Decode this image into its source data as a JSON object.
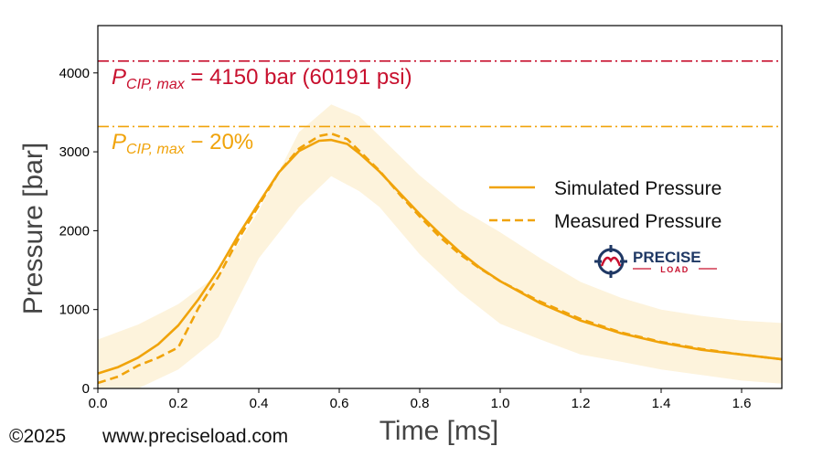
{
  "chart_data": {
    "type": "line",
    "xlabel": "Time [ms]",
    "ylabel": "Pressure [bar]",
    "xlim": [
      0.0,
      1.7
    ],
    "ylim": [
      0,
      4600
    ],
    "x_ticks": [
      "0.0",
      "0.2",
      "0.4",
      "0.6",
      "0.8",
      "1.0",
      "1.2",
      "1.4",
      "1.6"
    ],
    "y_ticks": [
      "0",
      "1000",
      "2000",
      "3000",
      "4000"
    ],
    "grid": false,
    "legend_position": "center-right",
    "series": [
      {
        "name": "Simulated Pressure",
        "style": "solid",
        "color": "#f0a30a",
        "x": [
          0.0,
          0.05,
          0.1,
          0.15,
          0.2,
          0.25,
          0.3,
          0.35,
          0.4,
          0.45,
          0.5,
          0.55,
          0.58,
          0.62,
          0.65,
          0.7,
          0.75,
          0.8,
          0.85,
          0.9,
          0.95,
          1.0,
          1.1,
          1.2,
          1.3,
          1.4,
          1.5,
          1.6,
          1.7
        ],
        "y": [
          190,
          270,
          390,
          560,
          800,
          1130,
          1510,
          1950,
          2350,
          2740,
          3010,
          3140,
          3150,
          3100,
          2980,
          2750,
          2480,
          2210,
          1960,
          1730,
          1530,
          1360,
          1080,
          860,
          700,
          580,
          490,
          430,
          370
        ]
      },
      {
        "name": "Measured Pressure",
        "style": "dashed",
        "color": "#f0a30a",
        "x": [
          0.0,
          0.05,
          0.1,
          0.15,
          0.2,
          0.25,
          0.3,
          0.35,
          0.4,
          0.45,
          0.5,
          0.55,
          0.58,
          0.62,
          0.65,
          0.7,
          0.75,
          0.8,
          0.85,
          0.9,
          0.95,
          1.0,
          1.1,
          1.2,
          1.3,
          1.4,
          1.5,
          1.6,
          1.7
        ],
        "y": [
          70,
          150,
          290,
          390,
          520,
          1020,
          1420,
          1900,
          2320,
          2740,
          3040,
          3200,
          3230,
          3160,
          3010,
          2760,
          2460,
          2180,
          1920,
          1700,
          1520,
          1360,
          1100,
          880,
          710,
          590,
          500,
          430,
          370
        ]
      }
    ],
    "band": {
      "color": "#fdf3dc",
      "x": [
        0.0,
        0.1,
        0.2,
        0.3,
        0.4,
        0.5,
        0.58,
        0.65,
        0.7,
        0.8,
        0.9,
        1.0,
        1.1,
        1.2,
        1.3,
        1.4,
        1.5,
        1.6,
        1.7
      ],
      "upper": [
        620,
        810,
        1070,
        1450,
        2250,
        3250,
        3600,
        3450,
        3200,
        2700,
        2280,
        1980,
        1650,
        1350,
        1150,
        1000,
        920,
        860,
        830
      ],
      "lower": [
        0,
        0,
        240,
        650,
        1650,
        2300,
        2690,
        2500,
        2300,
        1700,
        1220,
        820,
        620,
        430,
        340,
        240,
        170,
        100,
        60
      ]
    },
    "reference_lines": [
      {
        "y": 4150,
        "style": "dashdot",
        "color": "#c8102e",
        "label_main": "P",
        "label_sub": "CIP, max",
        "label_rest": " = 4150 bar (60191 psi)"
      },
      {
        "y": 3320,
        "style": "dashdot",
        "color": "#f0a30a",
        "label_main": "P",
        "label_sub": "CIP, max",
        "label_rest": " − 20%"
      }
    ]
  },
  "logo": {
    "word1": "PRECISE",
    "word2": "LOAD",
    "red": "#c8102e",
    "navy": "#1f3864"
  },
  "footer": {
    "copyright": "©2025",
    "website": "www.preciseload.com"
  }
}
